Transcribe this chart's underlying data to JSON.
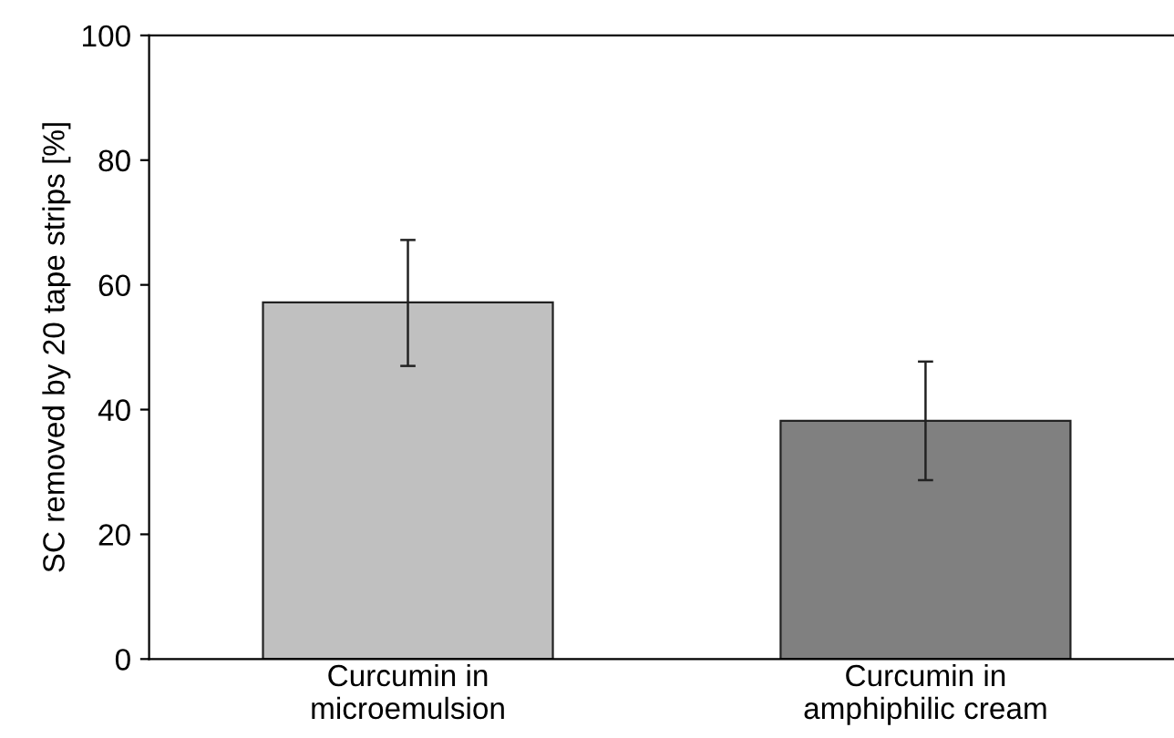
{
  "chart_data": {
    "type": "bar",
    "ylabel": "SC removed by 20 tape strips [%]",
    "categories": [
      "Curcumin in\nmicroemulsion",
      "Curcumin in\namphiphilic cream"
    ],
    "values": [
      57.2,
      38.2
    ],
    "colors": [
      "#c0c0c0",
      "#808080"
    ],
    "errors": [
      [
        47.0,
        67.2
      ],
      [
        28.7,
        47.7
      ]
    ],
    "ylim": [
      0,
      100
    ],
    "yticks": [
      0,
      20,
      40,
      60,
      80,
      100
    ],
    "grid": false,
    "legend": false
  }
}
